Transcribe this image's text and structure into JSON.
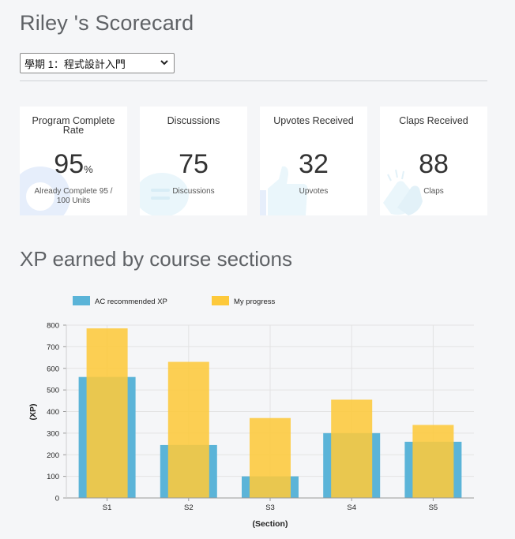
{
  "page": {
    "title": "Riley 's Scorecard"
  },
  "selector": {
    "selected": "學期 1：程式設計入門"
  },
  "cards": [
    {
      "title": "Program Complete Rate",
      "value": "95",
      "unit": "%",
      "subtitle": "Already Complete 95 / 100 Units",
      "icon": "donut-icon"
    },
    {
      "title": "Discussions",
      "value": "75",
      "unit": "",
      "subtitle": "Discussions",
      "icon": "chat-bubble-icon"
    },
    {
      "title": "Upvotes Received",
      "value": "32",
      "unit": "",
      "subtitle": "Upvotes",
      "icon": "thumbs-up-icon"
    },
    {
      "title": "Claps Received",
      "value": "88",
      "unit": "",
      "subtitle": "Claps",
      "icon": "clapping-hands-icon"
    }
  ],
  "section": {
    "title": "XP earned by course sections"
  },
  "colors": {
    "recommended": "#5bb4d8",
    "progress": "#fdc93b",
    "overlap": "#f2c744"
  },
  "chart_data": {
    "type": "bar",
    "categories": [
      "S1",
      "S2",
      "S3",
      "S4",
      "S5"
    ],
    "series": [
      {
        "name": "AC recommended XP",
        "values": [
          560,
          245,
          100,
          300,
          260
        ]
      },
      {
        "name": "My progress",
        "values": [
          785,
          630,
          370,
          455,
          338
        ]
      }
    ],
    "xlabel": "(Section)",
    "ylabel": "(XP)",
    "ylim": [
      0,
      800
    ],
    "yticks": [
      0,
      100,
      200,
      300,
      400,
      500,
      600,
      700,
      800
    ],
    "grid": true,
    "legend": "top-left"
  }
}
